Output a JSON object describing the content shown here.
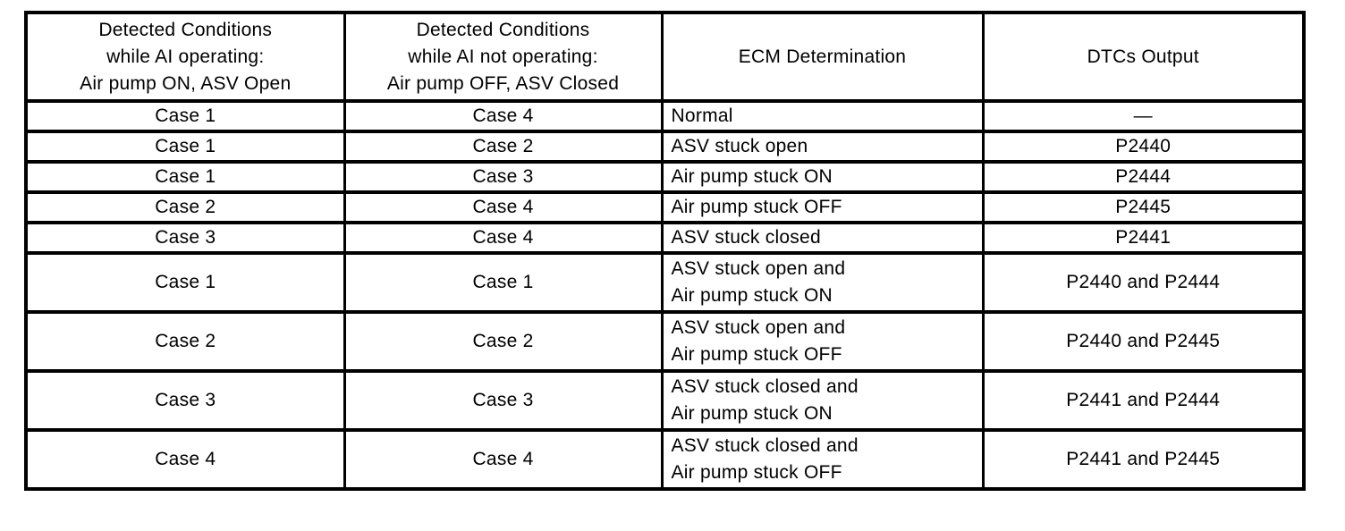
{
  "page": {
    "background_color": "#ffffff",
    "text_color": "#000000",
    "border_color": "#000000"
  },
  "table": {
    "name": "Secondary air injection DTC detection logic",
    "headers": [
      "Detected Conditions\nwhile AI operating:\nAir pump ON, ASV Open",
      "Detected Conditions\nwhile AI not operating:\nAir pump OFF, ASV Closed",
      "ECM Determination",
      "DTCs Output"
    ],
    "rows": [
      [
        "Case 1",
        "Case 4",
        "Normal",
        "—"
      ],
      [
        "Case 1",
        "Case 2",
        "ASV stuck open",
        "P2440"
      ],
      [
        "Case 1",
        "Case 3",
        "Air pump stuck ON",
        "P2444"
      ],
      [
        "Case 2",
        "Case 4",
        "Air pump stuck OFF",
        "P2445"
      ],
      [
        "Case 3",
        "Case 4",
        "ASV stuck closed",
        "P2441"
      ],
      [
        "Case 1",
        "Case 1",
        "ASV stuck open and\nAir pump stuck ON",
        "P2440 and P2444"
      ],
      [
        "Case 2",
        "Case 2",
        "ASV stuck open and\nAir pump stuck OFF",
        "P2440 and P2445"
      ],
      [
        "Case 3",
        "Case 3",
        "ASV stuck closed and\nAir pump stuck ON",
        "P2441 and P2444"
      ],
      [
        "Case 4",
        "Case 4",
        "ASV stuck closed and\nAir pump stuck OFF",
        "P2441 and P2445"
      ]
    ]
  }
}
